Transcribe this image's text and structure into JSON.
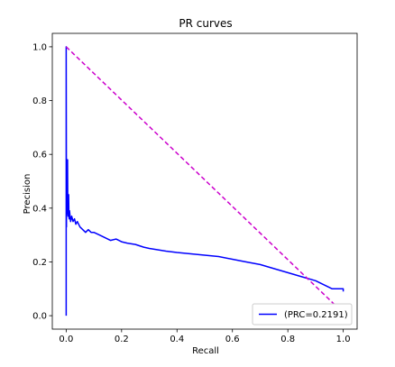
{
  "chart_data": {
    "type": "line",
    "title": "PR   curves",
    "xlabel": "Recall",
    "ylabel": "Precision",
    "xlim": [
      -0.05,
      1.05
    ],
    "ylim": [
      -0.05,
      1.05
    ],
    "xticks": [
      0.0,
      0.2,
      0.4,
      0.6,
      0.8,
      1.0
    ],
    "xtick_labels": [
      "0.0",
      "0.2",
      "0.4",
      "0.6",
      "0.8",
      "1.0"
    ],
    "yticks": [
      0.0,
      0.2,
      0.4,
      0.6,
      0.8,
      1.0
    ],
    "ytick_labels": [
      "0.0",
      "0.2",
      "0.4",
      "0.6",
      "0.8",
      "1.0"
    ],
    "grid": false,
    "legend_position": "lower-right",
    "series": [
      {
        "name": "(PRC=0.2191)",
        "color": "#0000ff",
        "style": "solid",
        "x": [
          0.0,
          0.0,
          0.001,
          0.001,
          0.002,
          0.002,
          0.003,
          0.003,
          0.004,
          0.004,
          0.005,
          0.006,
          0.007,
          0.008,
          0.009,
          0.01,
          0.011,
          0.012,
          0.013,
          0.014,
          0.016,
          0.018,
          0.02,
          0.025,
          0.03,
          0.035,
          0.04,
          0.05,
          0.06,
          0.07,
          0.08,
          0.09,
          0.1,
          0.12,
          0.14,
          0.16,
          0.18,
          0.2,
          0.22,
          0.25,
          0.28,
          0.3,
          0.33,
          0.36,
          0.4,
          0.45,
          0.5,
          0.55,
          0.6,
          0.65,
          0.7,
          0.75,
          0.8,
          0.85,
          0.9,
          0.95,
          0.96,
          1.0,
          1.0
        ],
        "y": [
          0.0,
          1.0,
          0.33,
          0.45,
          0.5,
          0.38,
          0.55,
          0.4,
          0.57,
          0.42,
          0.58,
          0.38,
          0.37,
          0.41,
          0.45,
          0.38,
          0.36,
          0.39,
          0.38,
          0.37,
          0.35,
          0.36,
          0.37,
          0.35,
          0.36,
          0.34,
          0.35,
          0.33,
          0.32,
          0.31,
          0.32,
          0.31,
          0.31,
          0.3,
          0.29,
          0.28,
          0.285,
          0.275,
          0.27,
          0.265,
          0.255,
          0.25,
          0.245,
          0.24,
          0.235,
          0.23,
          0.225,
          0.22,
          0.21,
          0.2,
          0.19,
          0.175,
          0.16,
          0.145,
          0.13,
          0.105,
          0.1,
          0.1,
          0.09
        ]
      },
      {
        "name": "",
        "color": "#cc00cc",
        "style": "dashed",
        "x": [
          0.0,
          0.98
        ],
        "y": [
          1.0,
          0.03
        ]
      }
    ]
  }
}
